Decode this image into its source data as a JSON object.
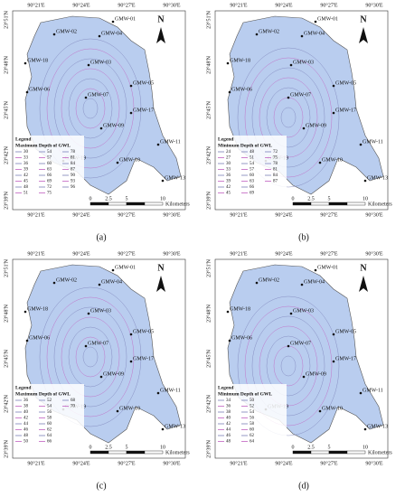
{
  "panels": [
    {
      "label": "(a)",
      "legend_heading": "Legend",
      "legend_title": "Maximum Depth of GWL",
      "legend_values": [
        30,
        33,
        36,
        39,
        42,
        45,
        48,
        51,
        54,
        57,
        60,
        63,
        66,
        69,
        72,
        75,
        78,
        81,
        84,
        87,
        90,
        93,
        96
      ]
    },
    {
      "label": "(b)",
      "legend_heading": "Legend",
      "legend_title": "Minimum Depth of GWL",
      "legend_values": [
        24,
        27,
        30,
        33,
        36,
        39,
        42,
        45,
        48,
        51,
        54,
        57,
        60,
        63,
        66,
        69,
        72,
        75,
        78,
        81,
        84,
        87
      ]
    },
    {
      "label": "(c)",
      "legend_heading": "Legend",
      "legend_title": "Maximum Depth of GWL",
      "legend_values": [
        36,
        38,
        40,
        42,
        44,
        46,
        48,
        50,
        52,
        54,
        56,
        58,
        60,
        62,
        64,
        66,
        68,
        70
      ]
    },
    {
      "label": "(d)",
      "legend_heading": "Legend",
      "legend_title": "Minimum Depth of GWL",
      "legend_values": [
        34,
        36,
        38,
        40,
        42,
        44,
        46,
        48,
        50,
        52,
        54,
        56,
        58,
        60,
        62,
        64
      ]
    }
  ],
  "longitudes": [
    "90°21'E",
    "90°24'E",
    "90°27'E",
    "90°30'E"
  ],
  "latitudes": [
    "23°51'N",
    "23°48'N",
    "23°45'N",
    "23°42'N",
    "23°39'N"
  ],
  "wells": [
    "GMW-01",
    "GMW-02",
    "GMW-04",
    "GMW-18",
    "GMW-03",
    "GMW-05",
    "GMW-06",
    "GMW-07",
    "GMW-17",
    "GMW-09",
    "GMW-11",
    "GMW-19",
    "GMW-10",
    "GMW-13"
  ],
  "scale_labels": [
    "0",
    "2.5",
    "5",
    "10",
    "Kilometers"
  ],
  "north": "N"
}
